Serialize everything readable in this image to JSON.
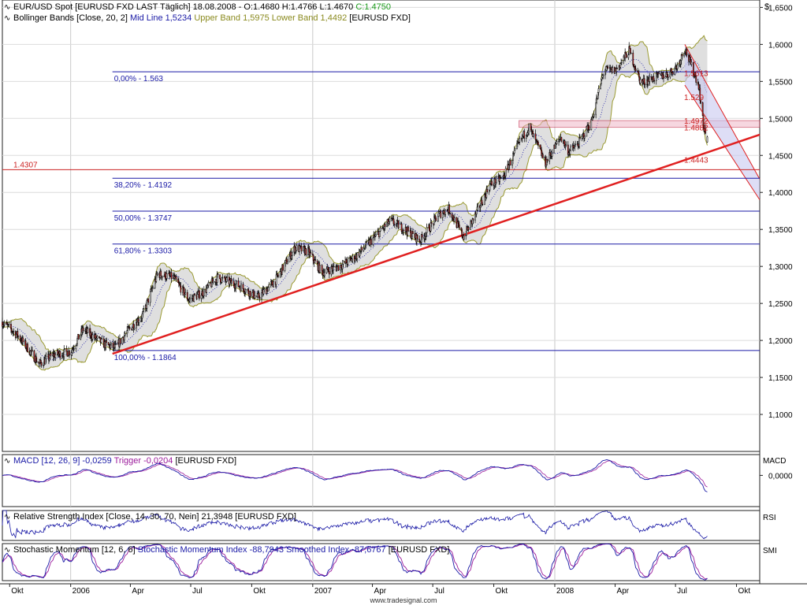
{
  "currency": "$",
  "source": "www.tradesignal.com",
  "headers": {
    "price": {
      "name": "EUR/USD Spot [EURUSD FXD LAST Täglich] 18.08.2008 - O:1.4680 H:1.4766 L:1.4670",
      "close": "C:1.4750"
    },
    "bollinger": {
      "name": "Bollinger Bands [Close, 20, 2]",
      "mid": "Mid Line 1,5234",
      "bands": "Upper Band 1,5975 Lower Band 1,4492",
      "suffix": "[EURUSD FXD]"
    },
    "macd": {
      "name": "MACD [12, 26, 9] -0,0259",
      "trigger": "Trigger -0,0204",
      "suffix": "[EURUSD FXD]"
    },
    "rsi": {
      "name": "Relative Strength Index [Close, 14, 30, 70, Nein] 21,3948 [EURUSD FXD]"
    },
    "smi": {
      "name": "Stochastic Momentum [12, 6, 6]",
      "values": "Stochastic Momentum Index -88,7943 Smoothed Index -87,6767",
      "suffix": "[EURUSD FXD]"
    }
  },
  "panel_labels": {
    "macd": "MACD",
    "rsi": "RSI",
    "smi": "SMI"
  },
  "colors": {
    "candle_up": "#ffffff",
    "candle_down": "#cc2222",
    "band_fill": "#d9d9d9",
    "band_line": "#9a9a30",
    "fib": "#1a1aa6",
    "support": "#e02020",
    "indicator_main": "#1a1aa6",
    "indicator_trigger": "#9b1a9b",
    "channel_fill": "#c8c8f0"
  },
  "chart_data": {
    "type": "candlestick",
    "price_panel": {
      "ylim": [
        1.05,
        1.66
      ],
      "y_ticks": [
        "1,1000",
        "1,1500",
        "1,2000",
        "1,2500",
        "1,3000",
        "1,3500",
        "1,4000",
        "1,4500",
        "1,5000",
        "1,5500",
        "1,6000",
        "1,6500"
      ],
      "y_tick_values": [
        1.1,
        1.15,
        1.2,
        1.25,
        1.3,
        1.35,
        1.4,
        1.45,
        1.5,
        1.55,
        1.6,
        1.65
      ],
      "x_range": [
        "2005-09-20",
        "2008-11-05"
      ],
      "x_ticks": [
        {
          "label": "Okt",
          "date": "2005-10-01"
        },
        {
          "label": "2006",
          "date": "2006-01-01"
        },
        {
          "label": "Apr",
          "date": "2006-04-01"
        },
        {
          "label": "Jul",
          "date": "2006-07-01"
        },
        {
          "label": "Okt",
          "date": "2006-10-01"
        },
        {
          "label": "2007",
          "date": "2007-01-01"
        },
        {
          "label": "Apr",
          "date": "2007-04-01"
        },
        {
          "label": "Jul",
          "date": "2007-07-01"
        },
        {
          "label": "Okt",
          "date": "2007-10-01"
        },
        {
          "label": "2008",
          "date": "2008-01-01"
        },
        {
          "label": "Apr",
          "date": "2008-04-01"
        },
        {
          "label": "Jul",
          "date": "2008-07-01"
        },
        {
          "label": "Okt",
          "date": "2008-10-01"
        }
      ],
      "path": [
        [
          "2005-09-20",
          1.225
        ],
        [
          "2005-10-15",
          1.205
        ],
        [
          "2005-11-15",
          1.168
        ],
        [
          "2005-12-05",
          1.18
        ],
        [
          "2006-01-01",
          1.185
        ],
        [
          "2006-01-20",
          1.215
        ],
        [
          "2006-02-20",
          1.195
        ],
        [
          "2006-03-10",
          1.19
        ],
        [
          "2006-03-25",
          1.21
        ],
        [
          "2006-04-20",
          1.235
        ],
        [
          "2006-05-12",
          1.29
        ],
        [
          "2006-06-05",
          1.285
        ],
        [
          "2006-06-28",
          1.255
        ],
        [
          "2006-07-20",
          1.265
        ],
        [
          "2006-08-10",
          1.285
        ],
        [
          "2006-09-10",
          1.275
        ],
        [
          "2006-10-10",
          1.258
        ],
        [
          "2006-11-05",
          1.28
        ],
        [
          "2006-12-05",
          1.325
        ],
        [
          "2006-12-25",
          1.32
        ],
        [
          "2007-01-15",
          1.292
        ],
        [
          "2007-02-10",
          1.3
        ],
        [
          "2007-03-05",
          1.312
        ],
        [
          "2007-04-05",
          1.34
        ],
        [
          "2007-04-28",
          1.362
        ],
        [
          "2007-05-20",
          1.35
        ],
        [
          "2007-06-12",
          1.335
        ],
        [
          "2007-07-10",
          1.37
        ],
        [
          "2007-07-25",
          1.378
        ],
        [
          "2007-08-16",
          1.34
        ],
        [
          "2007-09-01",
          1.365
        ],
        [
          "2007-09-25",
          1.41
        ],
        [
          "2007-10-15",
          1.42
        ],
        [
          "2007-11-10",
          1.47
        ],
        [
          "2007-11-23",
          1.488
        ],
        [
          "2007-12-18",
          1.44
        ],
        [
          "2008-01-10",
          1.475
        ],
        [
          "2008-01-22",
          1.455
        ],
        [
          "2008-02-05",
          1.465
        ],
        [
          "2008-02-25",
          1.495
        ],
        [
          "2008-03-15",
          1.565
        ],
        [
          "2008-04-02",
          1.565
        ],
        [
          "2008-04-22",
          1.592
        ],
        [
          "2008-05-10",
          1.548
        ],
        [
          "2008-05-30",
          1.555
        ],
        [
          "2008-06-20",
          1.56
        ],
        [
          "2008-07-05",
          1.572
        ],
        [
          "2008-07-15",
          1.595
        ],
        [
          "2008-07-25",
          1.57
        ],
        [
          "2008-08-05",
          1.545
        ],
        [
          "2008-08-12",
          1.49
        ],
        [
          "2008-08-18",
          1.475
        ]
      ],
      "fibonacci": [
        {
          "label": "0,00% - 1.563",
          "value": 1.563
        },
        {
          "label": "38,20% - 1.4192",
          "value": 1.4192
        },
        {
          "label": "50,00% - 1.3747",
          "value": 1.3747
        },
        {
          "label": "61,80% - 1.3303",
          "value": 1.3303
        },
        {
          "label": "100,00% - 1.1864",
          "value": 1.1864
        }
      ],
      "horizontal_levels": [
        {
          "label": "1.4307",
          "value": 1.4307
        }
      ],
      "annotations": [
        {
          "label": "1.5613",
          "value": 1.5613
        },
        {
          "label": "1.529",
          "value": 1.529
        },
        {
          "label": "1.4972",
          "value": 1.4972
        },
        {
          "label": "1.4882",
          "value": 1.4882
        },
        {
          "label": "1.4443",
          "value": 1.4443
        }
      ],
      "support_trendline": [
        [
          "2006-03-05",
          1.182
        ],
        [
          "2008-11-05",
          1.478
        ]
      ],
      "resistance_channel": {
        "upper": [
          [
            "2008-07-15",
            1.6
          ],
          [
            "2008-11-05",
            1.418
          ]
        ],
        "lower": [
          [
            "2008-07-15",
            1.545
          ],
          [
            "2008-11-05",
            1.39
          ]
        ]
      },
      "consolidation_box": {
        "from": "2007-11-08",
        "to": "2008-11-05",
        "top": 1.497,
        "bottom": 1.488
      }
    },
    "macd_panel": {
      "ylim": [
        -0.045,
        0.03
      ],
      "y_ticks": [
        "0,0000"
      ],
      "y_tick_values": [
        0.0
      ],
      "last": -0.0259,
      "trigger_last": -0.0204
    },
    "rsi_panel": {
      "ylim": [
        10,
        90
      ],
      "last": 21.3948
    },
    "smi_panel": {
      "ylim": [
        -100,
        100
      ],
      "last": -88.7943,
      "smoothed_last": -87.6767
    }
  }
}
